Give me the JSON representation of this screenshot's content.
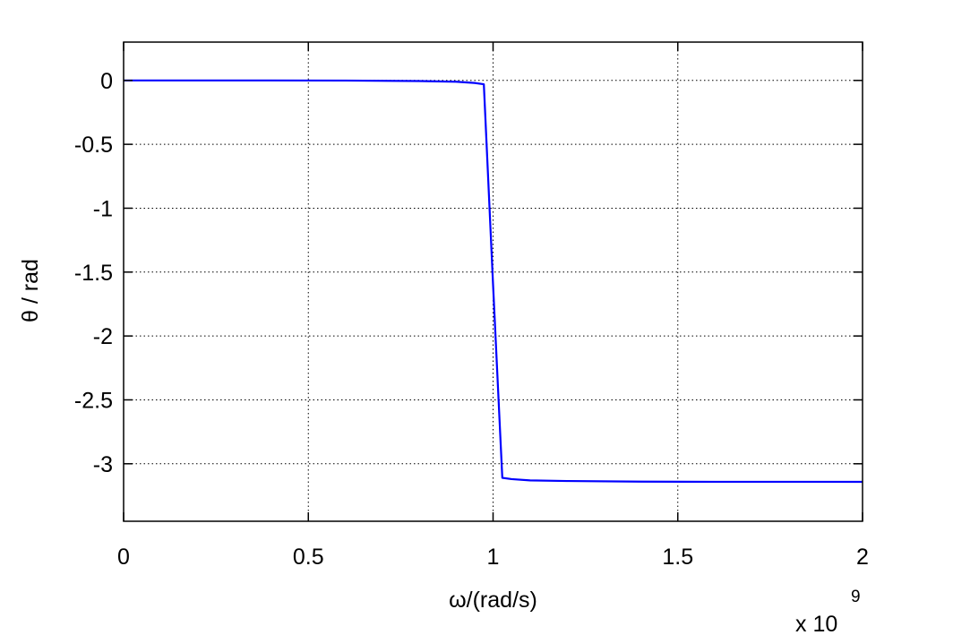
{
  "chart_data": {
    "type": "line",
    "title": "",
    "xlabel": "ω/(rad/s)",
    "ylabel": "θ / rad",
    "x_multiplier": {
      "base": "x 10",
      "exponent": "9"
    },
    "xlim": [
      0,
      2
    ],
    "ylim": [
      -3.45,
      0.3
    ],
    "grid": true,
    "legend": "none",
    "xticks": [
      0,
      0.5,
      1,
      1.5,
      2
    ],
    "xtick_labels": [
      "0",
      "0.5",
      "1",
      "1.5",
      "2"
    ],
    "yticks": [
      0,
      -0.5,
      -1,
      -1.5,
      -2,
      -2.5,
      -3
    ],
    "ytick_labels": [
      "0",
      "-0.5",
      "-1",
      "-1.5",
      "-2",
      "-2.5",
      "-3"
    ],
    "series": [
      {
        "color": "#0000ff",
        "x": [
          0,
          0.2,
          0.4,
          0.6,
          0.8,
          0.9,
          0.95,
          0.975,
          1.0,
          1.025,
          1.05,
          1.1,
          1.2,
          1.4,
          1.6,
          1.8,
          2.0
        ],
        "y": [
          0,
          0,
          0,
          -0.001,
          -0.005,
          -0.01,
          -0.02,
          -0.03,
          -1.6,
          -3.11,
          -3.12,
          -3.13,
          -3.135,
          -3.14,
          -3.141,
          -3.141,
          -3.1416
        ]
      }
    ]
  }
}
